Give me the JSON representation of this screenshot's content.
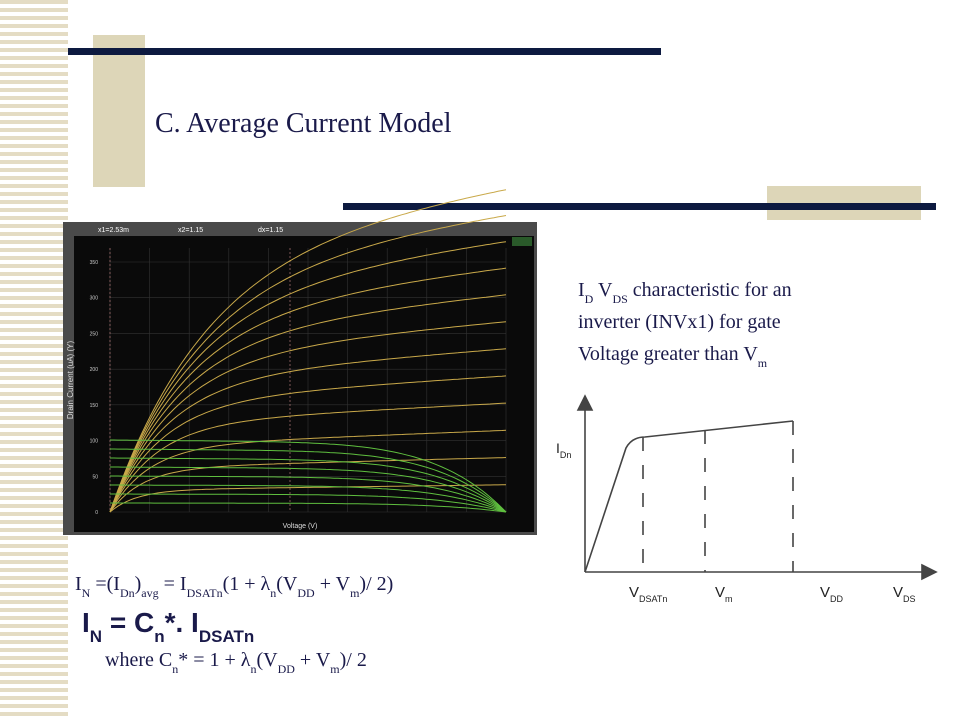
{
  "title": "C. Average Current Model",
  "description": [
    [
      {
        "text": "I",
        "sub": "D"
      },
      {
        "text": " V",
        "sub": "DS"
      },
      {
        "text": " characteristic for an"
      }
    ],
    [
      {
        "text": "inverter (INVx1) for gate"
      }
    ],
    [
      {
        "text": "Voltage greater than V",
        "sub": "m"
      }
    ]
  ],
  "sim_plot": {
    "cursor_labels": [
      "x1=2.53m",
      "x2=1.15",
      "dx=1.15"
    ],
    "y_axis_label": "Drain Current (uA) (Y)",
    "x_axis_label": "Voltage (V)",
    "y_tick_labels": [
      "0",
      "50",
      "100",
      "150",
      "200",
      "250",
      "300",
      "350"
    ]
  },
  "sketch": {
    "y_label": [
      {
        "text": "I",
        "sub": "Dn"
      }
    ],
    "x_labels": [
      [
        {
          "text": "V",
          "sub": "DSATn"
        }
      ],
      [
        {
          "text": "V",
          "sub": "m"
        }
      ],
      [
        {
          "text": "V",
          "sub": "DD"
        }
      ],
      [
        {
          "text": "V",
          "sub": "DS"
        }
      ]
    ]
  },
  "equations": [
    [
      {
        "text": "I",
        "sub": "N"
      },
      {
        "text": " =(I",
        "sub": "Dn"
      },
      {
        "text": ")",
        "sub": "avg"
      },
      {
        "text": " = I",
        "sub": "DSATn"
      },
      {
        "text": "(1 + λ",
        "sub": "n"
      },
      {
        "text": "(V",
        "sub": "DD"
      },
      {
        "text": " + V",
        "sub": "m"
      },
      {
        "text": ")/ 2)"
      }
    ],
    [
      {
        "text": "I",
        "sub": "N"
      },
      {
        "text": " = C",
        "sub": "n"
      },
      {
        "text": "*. I",
        "sub": "DSATn"
      }
    ],
    [
      {
        "text": "where C",
        "sub": "n"
      },
      {
        "text": "* = 1 + λ",
        "sub": "n"
      },
      {
        "text": "(V",
        "sub": "DD"
      },
      {
        "text": " + V",
        "sub": "m"
      },
      {
        "text": ")/ 2"
      }
    ]
  ]
}
